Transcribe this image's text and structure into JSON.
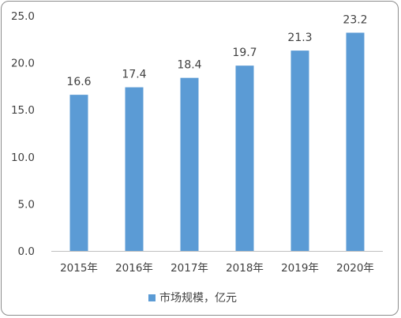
{
  "chart_data": {
    "type": "bar",
    "categories": [
      "2015年",
      "2016年",
      "2017年",
      "2018年",
      "2019年",
      "2020年"
    ],
    "series": [
      {
        "name": "市场规模，亿元",
        "values": [
          16.6,
          17.4,
          18.4,
          19.7,
          21.3,
          23.2
        ],
        "color": "#5b9bd5"
      }
    ],
    "data_labels": [
      "16.6",
      "17.4",
      "18.4",
      "19.7",
      "21.3",
      "23.2"
    ],
    "y_ticks": [
      "0.0",
      "5.0",
      "10.0",
      "15.0",
      "20.0",
      "25.0"
    ],
    "ylim": [
      0,
      25
    ],
    "grid": false,
    "legend_position": "bottom"
  }
}
